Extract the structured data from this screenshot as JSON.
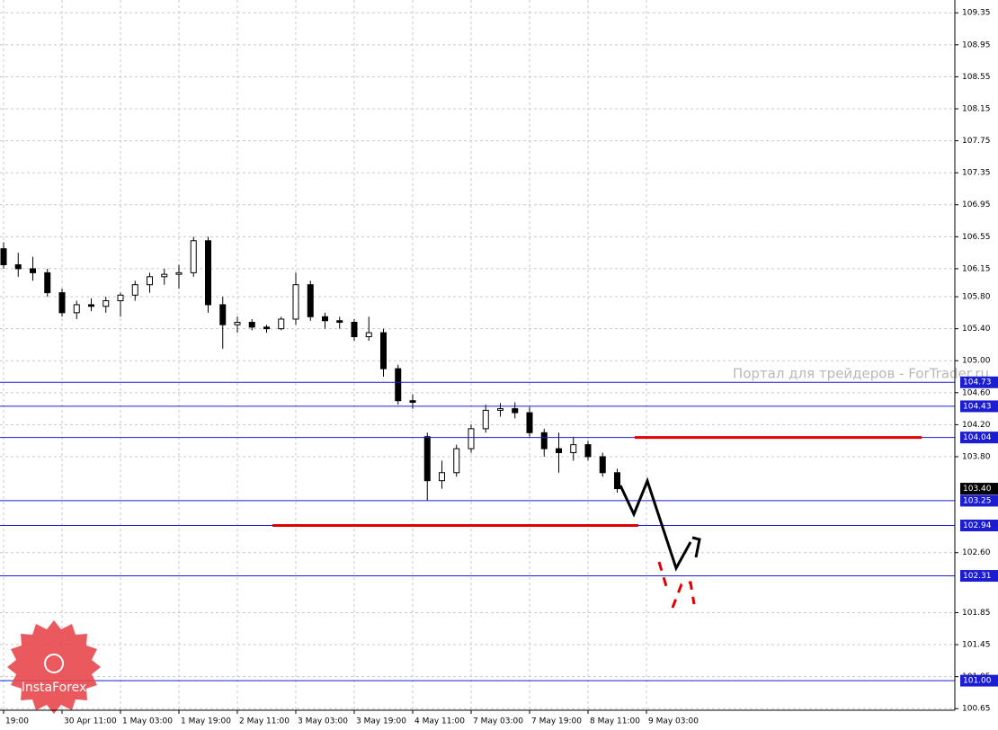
{
  "chart_data": {
    "type": "candlestick",
    "ylim": [
      100.63,
      109.51
    ],
    "yticks": [
      109.35,
      108.95,
      108.55,
      108.15,
      107.75,
      107.35,
      106.95,
      106.55,
      106.15,
      {
        "value": 105.8,
        "label": "105.80"
      },
      {
        "value": 105.4,
        "label": "105.40"
      },
      {
        "value": 105,
        "label": "105.00"
      },
      {
        "value": 104.6,
        "label": "104.60"
      },
      {
        "value": 104.2,
        "label": "104.20"
      },
      {
        "value": 103.8,
        "label": "103.80"
      },
      {
        "value": 102.6,
        "label": "102.60"
      },
      101.85,
      101.45,
      101.05,
      100.65
    ],
    "x_labels": [
      "19:00",
      "30 Apr 11:00",
      "1 May 03:00",
      "1 May 19:00",
      "2 May 11:00",
      "3 May 03:00",
      "3 May 19:00",
      "4 May 11:00",
      "7 May 03:00",
      "7 May 19:00",
      "8 May 11:00",
      "9 May 03:00"
    ],
    "open": [
      106.4,
      106.2,
      106.15,
      106.1,
      105.85,
      105.6,
      105.7,
      105.68,
      105.75,
      105.82,
      105.95,
      106.05,
      106.08,
      106.1,
      106.5,
      105.7,
      105.45,
      105.48,
      105.42,
      105.4,
      105.52,
      105.95,
      105.55,
      105.5,
      105.48,
      105.3,
      105.35,
      104.9,
      104.5,
      104.05,
      103.5,
      103.6,
      103.9,
      104.15,
      104.38,
      104.4,
      104.35,
      104.1,
      103.9,
      103.85,
      103.95,
      103.8,
      103.6
    ],
    "high": [
      106.48,
      106.35,
      106.3,
      106.15,
      105.9,
      105.75,
      105.78,
      105.8,
      105.85,
      106.0,
      106.1,
      106.15,
      106.2,
      106.55,
      106.55,
      105.8,
      105.55,
      105.52,
      105.45,
      105.55,
      106.1,
      106.0,
      105.6,
      105.55,
      105.52,
      105.55,
      105.4,
      104.95,
      104.58,
      104.1,
      103.75,
      103.95,
      104.2,
      104.45,
      104.47,
      104.48,
      104.42,
      104.15,
      104.1,
      104.05,
      104.0,
      103.85,
      103.65
    ],
    "low": [
      106.15,
      106.05,
      106.0,
      105.8,
      105.55,
      105.52,
      105.62,
      105.6,
      105.55,
      105.75,
      105.85,
      105.95,
      105.9,
      106.05,
      105.6,
      105.15,
      105.35,
      105.38,
      105.35,
      105.38,
      105.45,
      105.5,
      105.4,
      105.4,
      105.25,
      105.25,
      104.8,
      104.45,
      104.4,
      103.25,
      103.4,
      103.55,
      103.85,
      104.1,
      104.3,
      104.28,
      104.05,
      103.8,
      103.6,
      103.75,
      103.75,
      103.55,
      103.35
    ],
    "close": [
      106.2,
      106.15,
      106.1,
      105.85,
      105.6,
      105.7,
      105.68,
      105.75,
      105.82,
      105.95,
      106.05,
      106.08,
      106.1,
      106.5,
      105.7,
      105.45,
      105.48,
      105.42,
      105.4,
      105.52,
      105.95,
      105.55,
      105.5,
      105.48,
      105.3,
      105.35,
      104.9,
      104.5,
      104.48,
      103.5,
      103.6,
      103.9,
      104.15,
      104.38,
      104.4,
      104.35,
      104.1,
      103.9,
      103.85,
      103.95,
      103.8,
      103.6,
      103.4
    ],
    "levels": [
      104.73,
      104.43,
      104.04,
      103.25,
      102.94,
      102.31,
      {
        "value": 101,
        "label": "101.00"
      }
    ],
    "current_price": {
      "value": 103.4,
      "label": "103.40"
    },
    "key_levels": [
      102.94,
      104.04
    ],
    "watermark": "Портал для трейдеров - ForTrader.ru",
    "logo_text": "InstaForex"
  }
}
